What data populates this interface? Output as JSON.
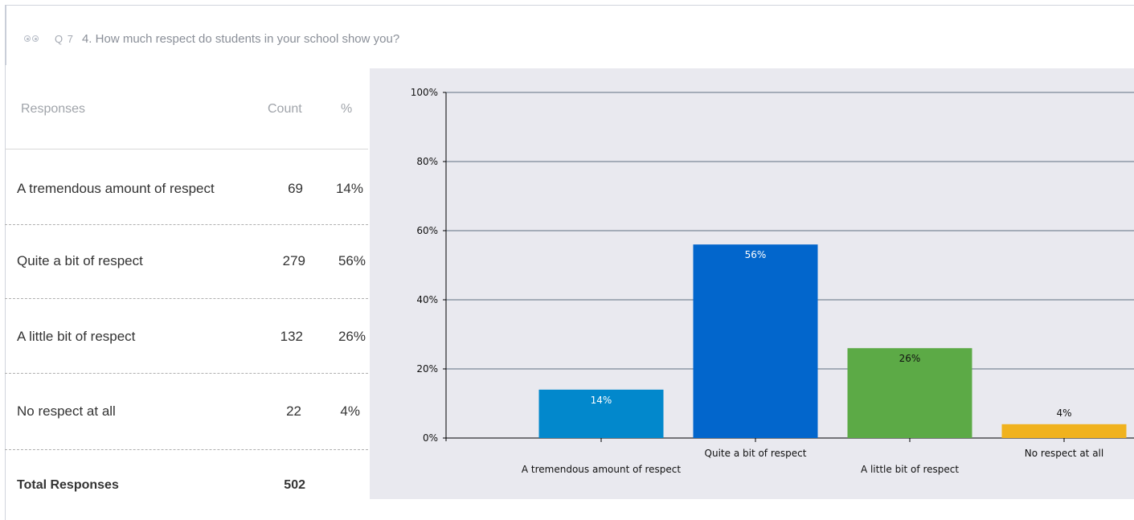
{
  "question": {
    "number": "Q 7",
    "text": "4. How much respect do students in your school show you?"
  },
  "table": {
    "headers": {
      "responses": "Responses",
      "count": "Count",
      "percent": "%"
    },
    "rows": [
      {
        "label": "A tremendous amount of respect",
        "count": "69",
        "percent": "14%"
      },
      {
        "label": "Quite a bit of respect",
        "count": "279",
        "percent": "56%"
      },
      {
        "label": "A little bit of respect",
        "count": "132",
        "percent": "26%"
      },
      {
        "label": "No respect at all",
        "count": "22",
        "percent": "4%"
      }
    ],
    "total": {
      "label": "Total Responses",
      "count": "502"
    }
  },
  "chart_data": {
    "type": "bar",
    "categories": [
      "A tremendous amount of respect",
      "Quite a bit of respect",
      "A little bit of respect",
      "No respect at all"
    ],
    "values": [
      14,
      56,
      26,
      4
    ],
    "data_labels": [
      "14%",
      "56%",
      "26%",
      "4%"
    ],
    "colors": [
      "#0288cc",
      "#0266cc",
      "#5caa46",
      "#f0b21e"
    ],
    "label_colors": [
      "#ffffff",
      "#ffffff",
      "#111111",
      "#111111"
    ],
    "y_ticks": [
      "0%",
      "20%",
      "40%",
      "60%",
      "80%",
      "100%"
    ],
    "ylim": [
      0,
      100
    ],
    "grid": true,
    "background": "#e9e9ef"
  }
}
